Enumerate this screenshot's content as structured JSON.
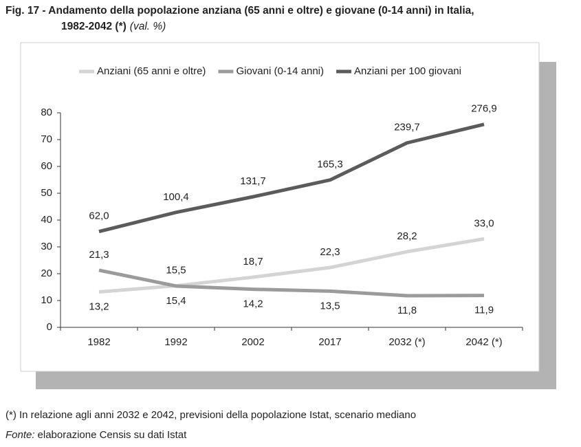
{
  "chart_data": {
    "type": "line",
    "title": [
      "Fig. 17 - Andamento della popolazione anziana (65 anni e oltre) e giovane (0-14 anni) in Italia,",
      "1982-2042 (*)"
    ],
    "subtitle": "(val. %)",
    "categories": [
      "1982",
      "1992",
      "2002",
      "2017",
      "2032 (*)",
      "2042 (*)"
    ],
    "series": [
      {
        "name": "Anziani (65 anni e oltre)",
        "color": "#d4d4d4",
        "values": [
          13.2,
          15.5,
          18.7,
          22.3,
          28.2,
          33.0
        ],
        "value_labels": [
          "13,2",
          "15,5",
          "18,7",
          "22,3",
          "28,2",
          "33,0"
        ]
      },
      {
        "name": "Giovani (0-14 anni)",
        "color": "#9b9b9b",
        "values": [
          21.3,
          15.4,
          14.2,
          13.5,
          11.8,
          11.9
        ],
        "value_labels": [
          "21,3",
          "15,4",
          "14,2",
          "13,5",
          "11,8",
          "11,9"
        ]
      },
      {
        "name": "Anziani per 100 giovani",
        "color": "#5b5b5b",
        "axis": "y2",
        "values": [
          62.0,
          100.4,
          131.7,
          165.3,
          239.7,
          276.9
        ],
        "value_labels": [
          "62,0",
          "100,4",
          "131,7",
          "165,3",
          "239,7",
          "276,9"
        ]
      }
    ],
    "ylim": [
      0,
      80
    ],
    "yticks": [
      0,
      10,
      20,
      30,
      40,
      50,
      60,
      70,
      80
    ],
    "y2lim": [
      -130,
      300
    ],
    "legend": "top",
    "note": "(*) In relazione agli anni 2032 e 2042, previsioni della popolazione Istat, scenario mediano",
    "source_label": "Fonte:",
    "source": "elaborazione Censis su dati Istat"
  }
}
